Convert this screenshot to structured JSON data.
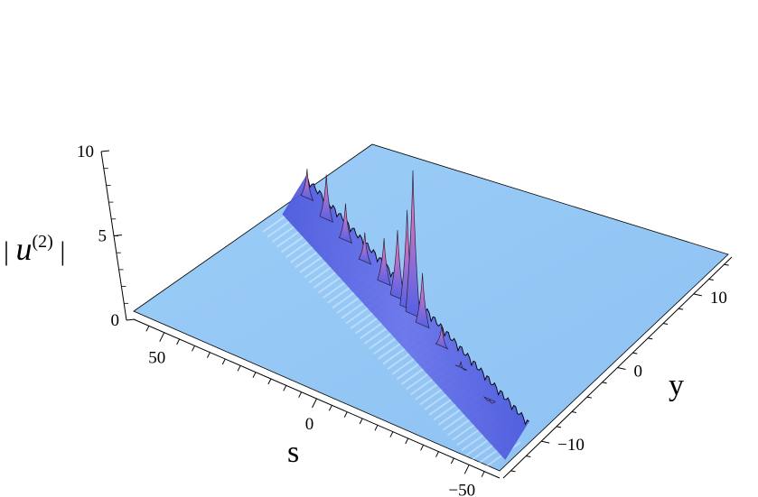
{
  "chart_data": {
    "type": "surface3d",
    "title": "",
    "xlabel": "s",
    "ylabel": "y",
    "zlabel": {
      "base": "u",
      "sup": "(2)"
    },
    "xlim": [
      -60,
      60
    ],
    "ylim": [
      -15,
      15
    ],
    "zlim": [
      0,
      10
    ],
    "x_ticks": [
      {
        "value": 50,
        "label": "50"
      },
      {
        "value": 0,
        "label": "0"
      },
      {
        "value": -50,
        "label": "−50"
      }
    ],
    "y_ticks": [
      {
        "value": 10,
        "label": "10"
      },
      {
        "value": 0,
        "label": "0"
      },
      {
        "value": -10,
        "label": "−10"
      }
    ],
    "z_ticks": [
      {
        "value": 10,
        "label": "10"
      },
      {
        "value": 5,
        "label": "5"
      },
      {
        "value": 0,
        "label": "0"
      }
    ],
    "baseline_value": 1,
    "ridge_line": {
      "y_at_s_min": -12,
      "y_at_s_max": 5
    },
    "peaks": [
      {
        "s": 55,
        "height": 3.5
      },
      {
        "s": 45,
        "height": 4.5
      },
      {
        "s": 35,
        "height": 4.0
      },
      {
        "s": 25,
        "height": 3.5
      },
      {
        "s": 15,
        "height": 4.5
      },
      {
        "s": 8,
        "height": 6.0
      },
      {
        "s": 3,
        "height": 8.0
      },
      {
        "s": 0,
        "height": 11.0
      },
      {
        "s": -5,
        "height": 5.0
      },
      {
        "s": -15,
        "height": 3.0
      },
      {
        "s": -25,
        "height": 2.0
      },
      {
        "s": -40,
        "height": 1.6
      }
    ],
    "colors": {
      "floor": "#96c8f6",
      "floor_edge": "#7fb6ea",
      "ridge_low": "#4f5be0",
      "ridge_high": "#e07ab8",
      "peak_tip": "#f2a2d6"
    },
    "grid": false
  }
}
